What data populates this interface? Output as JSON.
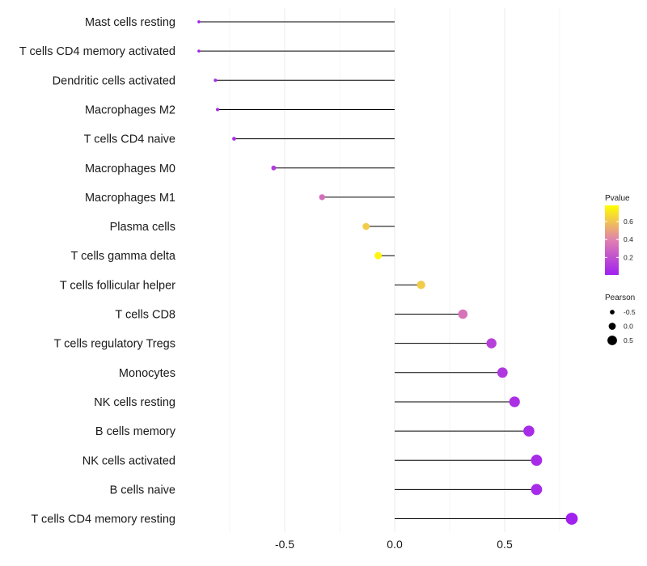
{
  "chart_data": {
    "type": "lollipop",
    "title": "",
    "xlabel": "",
    "ylabel": "",
    "xlim": [
      -0.89,
      0.82
    ],
    "x_ticks": [
      -0.5,
      0.0,
      0.5
    ],
    "x_tick_labels": [
      "-0.5",
      "0.0",
      "0.5"
    ],
    "grid": true,
    "baseline": 0.0,
    "categories": [
      "Mast cells resting",
      "T cells CD4 memory activated",
      "Dendritic cells activated",
      "Macrophages M2",
      "T cells CD4 naive",
      "Macrophages M0",
      "Macrophages M1",
      "Plasma cells",
      "T cells gamma delta",
      "T cells follicular helper",
      "T cells CD8",
      "T cells regulatory  Tregs ",
      "Monocytes",
      "NK cells resting",
      "B cells memory",
      "NK cells activated",
      "B cells naive",
      "T cells CD4 memory resting"
    ],
    "pearson": [
      -0.89,
      -0.89,
      -0.815,
      -0.805,
      -0.73,
      -0.55,
      -0.33,
      -0.13,
      -0.075,
      0.12,
      0.31,
      0.44,
      0.49,
      0.545,
      0.61,
      0.645,
      0.645,
      0.805
    ],
    "pvalue": [
      0.02,
      0.02,
      0.05,
      0.05,
      0.06,
      0.12,
      0.32,
      0.62,
      0.75,
      0.62,
      0.34,
      0.14,
      0.1,
      0.07,
      0.05,
      0.05,
      0.05,
      0.01
    ],
    "legend_pvalue": {
      "title": "Pvalue",
      "ticks": [
        0.2,
        0.4,
        0.6
      ],
      "tick_labels": [
        "0.2",
        "0.4",
        "0.6"
      ],
      "range": [
        0.005,
        0.78
      ],
      "color_low": "#a020f0",
      "color_mid": "#e080b0",
      "color_high": "#ffff00",
      "placement": "right"
    },
    "legend_pearson": {
      "title": "Pearson",
      "values": [
        -0.5,
        0.0,
        0.5
      ],
      "labels": [
        "-0.5",
        "0.0",
        "0.5"
      ],
      "placement": "right"
    }
  }
}
